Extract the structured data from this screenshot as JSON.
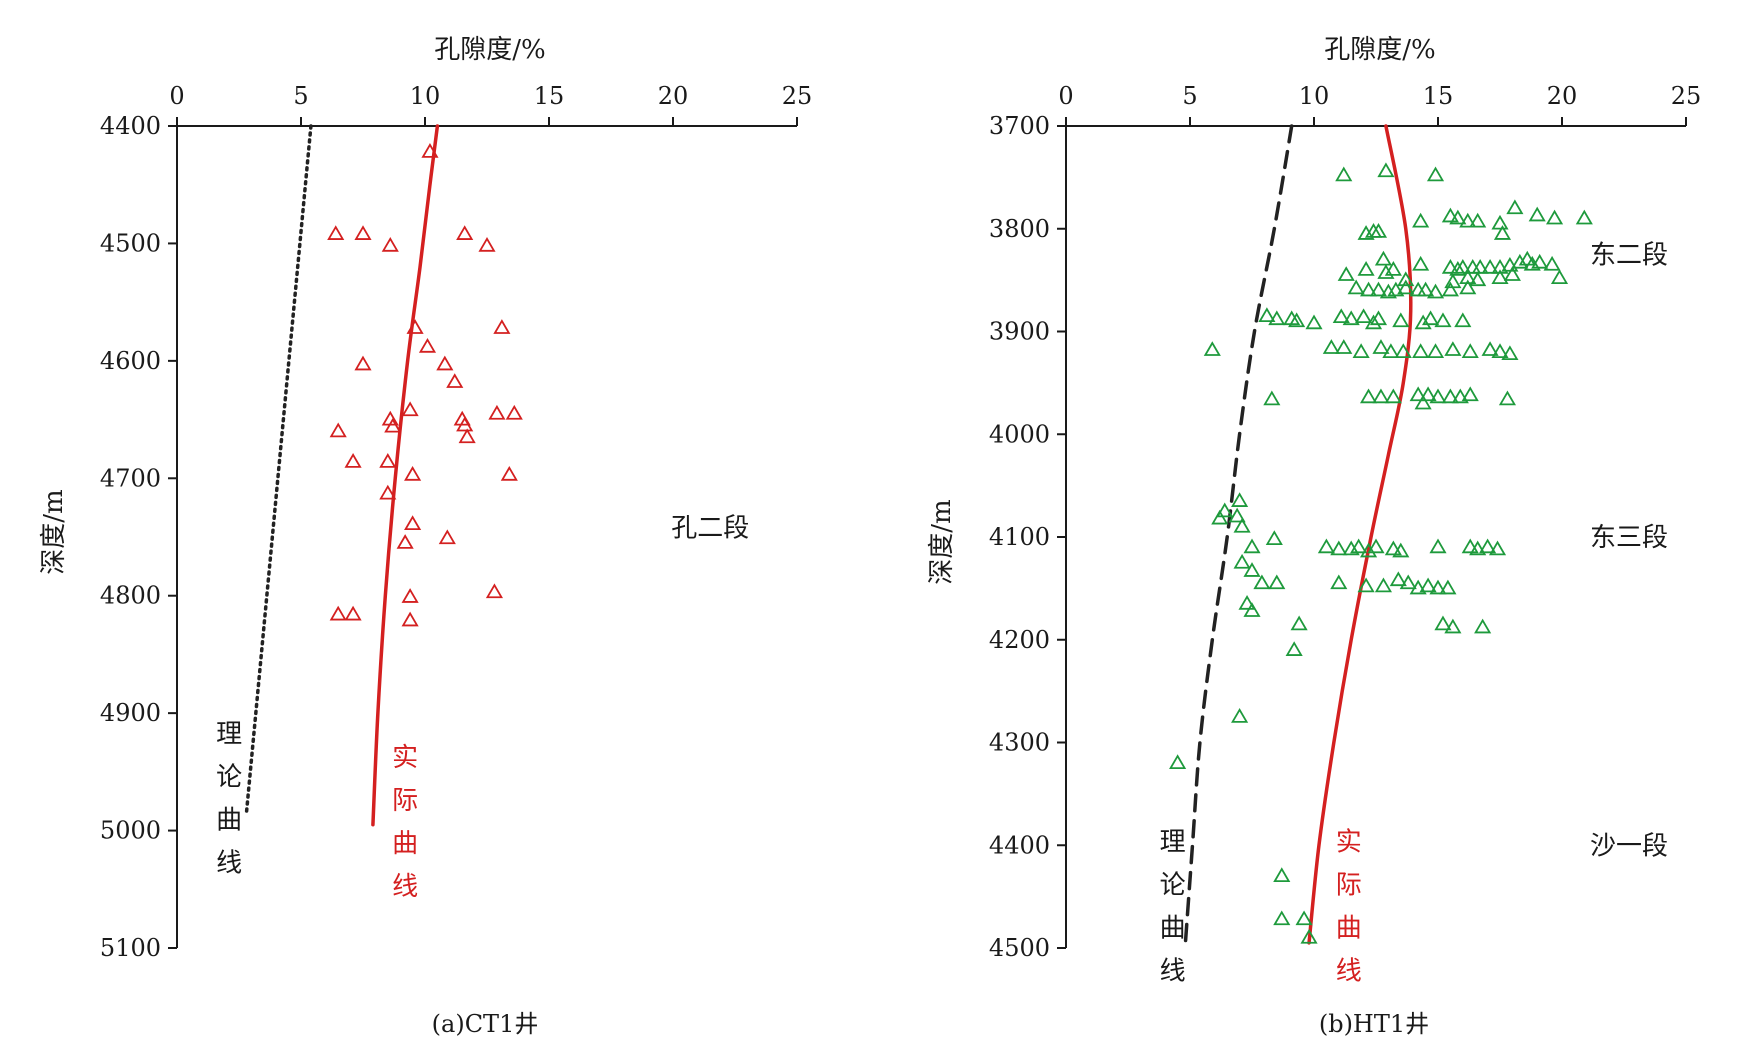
{
  "colors": {
    "actual_curve": "#d42020",
    "red_markers": "#d42020",
    "green_markers": "#1e9a3c",
    "theory_a": "#222222",
    "theory_b": "#222222",
    "axis": "#1a1a1a"
  },
  "chart_data": [
    {
      "type": "scatter",
      "caption": "(a)CT1井",
      "xlabel": "孔隙度/%",
      "ylabel": "深度/m",
      "x_axis_position": "top",
      "y_inverted": true,
      "xlim": [
        0,
        25
      ],
      "ylim": [
        4400,
        5100
      ],
      "xticks": [
        0,
        5,
        10,
        15,
        20,
        25
      ],
      "yticks": [
        4400,
        4500,
        4600,
        4700,
        4800,
        4900,
        5000,
        5100
      ],
      "grid": false,
      "marker": "triangle-open",
      "zone_labels": [
        {
          "text": "孔二段",
          "x": 21.5,
          "y": 4742
        }
      ],
      "curve_labels": [
        {
          "text": [
            "理",
            "论",
            "曲",
            "线"
          ],
          "x": 2.1,
          "y": 4925,
          "role": "theory"
        },
        {
          "text": [
            "实",
            "际",
            "曲",
            "线"
          ],
          "x": 9.2,
          "y": 4945,
          "role": "actual"
        }
      ],
      "theory_curve": {
        "style": "dotted",
        "points": [
          [
            5.4,
            4400
          ],
          [
            2.8,
            4985
          ]
        ]
      },
      "actual_curve": {
        "style": "solid",
        "points": [
          [
            10.5,
            4400
          ],
          [
            10.2,
            4450
          ],
          [
            9.8,
            4520
          ],
          [
            9.3,
            4600
          ],
          [
            8.8,
            4700
          ],
          [
            8.4,
            4800
          ],
          [
            8.1,
            4900
          ],
          [
            7.9,
            4995
          ]
        ]
      },
      "points": [
        [
          10.2,
          4422
        ],
        [
          6.4,
          4492
        ],
        [
          7.5,
          4492
        ],
        [
          8.6,
          4502
        ],
        [
          11.6,
          4492
        ],
        [
          12.5,
          4502
        ],
        [
          9.6,
          4572
        ],
        [
          13.1,
          4572
        ],
        [
          10.1,
          4588
        ],
        [
          10.8,
          4603
        ],
        [
          7.5,
          4603
        ],
        [
          11.2,
          4618
        ],
        [
          9.4,
          4642
        ],
        [
          12.9,
          4645
        ],
        [
          13.6,
          4645
        ],
        [
          8.6,
          4650
        ],
        [
          8.7,
          4656
        ],
        [
          11.5,
          4650
        ],
        [
          11.6,
          4655
        ],
        [
          11.7,
          4665
        ],
        [
          6.5,
          4660
        ],
        [
          7.1,
          4686
        ],
        [
          8.5,
          4686
        ],
        [
          9.5,
          4697
        ],
        [
          13.4,
          4697
        ],
        [
          8.5,
          4713
        ],
        [
          9.5,
          4739
        ],
        [
          10.9,
          4751
        ],
        [
          9.2,
          4755
        ],
        [
          9.4,
          4801
        ],
        [
          12.8,
          4797
        ],
        [
          6.5,
          4816
        ],
        [
          7.1,
          4816
        ],
        [
          9.4,
          4821
        ]
      ]
    },
    {
      "type": "scatter",
      "caption": "(b)HT1井",
      "xlabel": "孔隙度/%",
      "ylabel": "深度/m",
      "x_axis_position": "top",
      "y_inverted": true,
      "xlim": [
        0,
        25
      ],
      "ylim": [
        3700,
        4500
      ],
      "xticks": [
        0,
        5,
        10,
        15,
        20,
        25
      ],
      "yticks": [
        3700,
        3800,
        3900,
        4000,
        4100,
        4200,
        4300,
        4400,
        4500
      ],
      "grid": false,
      "marker": "triangle-open",
      "zone_labels": [
        {
          "text": "东二段",
          "x": 22.7,
          "y": 3825
        },
        {
          "text": "东三段",
          "x": 22.7,
          "y": 4100
        },
        {
          "text": "沙一段",
          "x": 22.7,
          "y": 4400
        }
      ],
      "curve_labels": [
        {
          "text": [
            "理",
            "论",
            "曲",
            "线"
          ],
          "x": 4.3,
          "y": 4405,
          "role": "theory"
        },
        {
          "text": [
            "实",
            "际",
            "曲",
            "线"
          ],
          "x": 11.4,
          "y": 4405,
          "role": "actual"
        }
      ],
      "theory_curve": {
        "style": "dashed",
        "points": [
          [
            9.1,
            3700
          ],
          [
            8.4,
            3800
          ],
          [
            7.6,
            3900
          ],
          [
            7.0,
            4000
          ],
          [
            6.5,
            4100
          ],
          [
            5.9,
            4200
          ],
          [
            5.4,
            4300
          ],
          [
            5.1,
            4400
          ],
          [
            4.8,
            4500
          ]
        ]
      },
      "actual_curve": {
        "style": "solid",
        "points": [
          [
            12.9,
            3700
          ],
          [
            13.7,
            3800
          ],
          [
            13.9,
            3880
          ],
          [
            13.6,
            3950
          ],
          [
            13.0,
            4020
          ],
          [
            12.3,
            4100
          ],
          [
            11.5,
            4200
          ],
          [
            10.8,
            4300
          ],
          [
            10.2,
            4400
          ],
          [
            9.8,
            4495
          ]
        ]
      },
      "points": [
        [
          11.2,
          3748
        ],
        [
          12.9,
          3744
        ],
        [
          14.9,
          3748
        ],
        [
          14.3,
          3793
        ],
        [
          15.5,
          3788
        ],
        [
          15.8,
          3790
        ],
        [
          16.2,
          3793
        ],
        [
          16.6,
          3793
        ],
        [
          17.5,
          3795
        ],
        [
          17.6,
          3805
        ],
        [
          18.1,
          3780
        ],
        [
          19.0,
          3787
        ],
        [
          19.7,
          3790
        ],
        [
          20.9,
          3790
        ],
        [
          12.1,
          3805
        ],
        [
          12.4,
          3803
        ],
        [
          12.6,
          3803
        ],
        [
          12.8,
          3830
        ],
        [
          14.3,
          3835
        ],
        [
          15.5,
          3838
        ],
        [
          15.8,
          3840
        ],
        [
          16.0,
          3838
        ],
        [
          16.4,
          3838
        ],
        [
          16.7,
          3838
        ],
        [
          17.1,
          3838
        ],
        [
          17.5,
          3838
        ],
        [
          17.9,
          3836
        ],
        [
          18.3,
          3833
        ],
        [
          18.6,
          3830
        ],
        [
          18.8,
          3835
        ],
        [
          19.1,
          3833
        ],
        [
          19.6,
          3835
        ],
        [
          19.9,
          3848
        ],
        [
          11.3,
          3845
        ],
        [
          12.1,
          3840
        ],
        [
          12.9,
          3843
        ],
        [
          13.2,
          3840
        ],
        [
          13.7,
          3850
        ],
        [
          15.6,
          3852
        ],
        [
          16.2,
          3848
        ],
        [
          16.6,
          3850
        ],
        [
          17.5,
          3848
        ],
        [
          18.0,
          3845
        ],
        [
          11.7,
          3858
        ],
        [
          12.2,
          3860
        ],
        [
          12.6,
          3860
        ],
        [
          13.0,
          3862
        ],
        [
          13.3,
          3860
        ],
        [
          13.7,
          3858
        ],
        [
          14.2,
          3860
        ],
        [
          14.5,
          3860
        ],
        [
          14.9,
          3862
        ],
        [
          15.5,
          3860
        ],
        [
          16.2,
          3858
        ],
        [
          8.1,
          3885
        ],
        [
          8.5,
          3888
        ],
        [
          9.1,
          3888
        ],
        [
          9.3,
          3890
        ],
        [
          10.0,
          3892
        ],
        [
          11.1,
          3886
        ],
        [
          11.5,
          3888
        ],
        [
          12.0,
          3886
        ],
        [
          12.4,
          3892
        ],
        [
          12.6,
          3888
        ],
        [
          13.5,
          3890
        ],
        [
          14.4,
          3892
        ],
        [
          14.7,
          3888
        ],
        [
          15.2,
          3890
        ],
        [
          16.0,
          3890
        ],
        [
          5.9,
          3918
        ],
        [
          10.7,
          3916
        ],
        [
          11.2,
          3916
        ],
        [
          11.9,
          3920
        ],
        [
          12.7,
          3916
        ],
        [
          13.1,
          3920
        ],
        [
          13.6,
          3920
        ],
        [
          14.3,
          3920
        ],
        [
          14.9,
          3920
        ],
        [
          15.6,
          3918
        ],
        [
          16.3,
          3920
        ],
        [
          17.1,
          3918
        ],
        [
          17.5,
          3920
        ],
        [
          17.9,
          3922
        ],
        [
          8.3,
          3966
        ],
        [
          12.2,
          3964
        ],
        [
          12.7,
          3964
        ],
        [
          13.2,
          3964
        ],
        [
          14.2,
          3962
        ],
        [
          14.6,
          3962
        ],
        [
          15.0,
          3964
        ],
        [
          15.5,
          3964
        ],
        [
          15.9,
          3964
        ],
        [
          16.3,
          3962
        ],
        [
          17.8,
          3966
        ],
        [
          14.4,
          3970
        ],
        [
          7.0,
          4065
        ],
        [
          6.4,
          4075
        ],
        [
          6.2,
          4082
        ],
        [
          6.9,
          4080
        ],
        [
          7.1,
          4090
        ],
        [
          8.4,
          4102
        ],
        [
          7.5,
          4110
        ],
        [
          10.5,
          4110
        ],
        [
          11.0,
          4112
        ],
        [
          11.5,
          4112
        ],
        [
          11.8,
          4110
        ],
        [
          12.2,
          4114
        ],
        [
          12.5,
          4110
        ],
        [
          13.2,
          4112
        ],
        [
          13.5,
          4114
        ],
        [
          15.0,
          4110
        ],
        [
          16.3,
          4110
        ],
        [
          16.6,
          4112
        ],
        [
          17.0,
          4110
        ],
        [
          17.4,
          4112
        ],
        [
          7.1,
          4125
        ],
        [
          7.5,
          4133
        ],
        [
          7.9,
          4145
        ],
        [
          8.5,
          4145
        ],
        [
          11.0,
          4145
        ],
        [
          12.1,
          4148
        ],
        [
          12.8,
          4148
        ],
        [
          13.4,
          4142
        ],
        [
          13.8,
          4145
        ],
        [
          14.2,
          4150
        ],
        [
          14.6,
          4148
        ],
        [
          15.0,
          4150
        ],
        [
          15.4,
          4150
        ],
        [
          7.3,
          4165
        ],
        [
          7.5,
          4172
        ],
        [
          9.4,
          4185
        ],
        [
          9.2,
          4210
        ],
        [
          15.2,
          4185
        ],
        [
          15.6,
          4188
        ],
        [
          16.8,
          4188
        ],
        [
          7.0,
          4275
        ],
        [
          4.5,
          4320
        ],
        [
          8.7,
          4430
        ],
        [
          8.7,
          4472
        ],
        [
          9.6,
          4472
        ],
        [
          9.8,
          4490
        ]
      ]
    }
  ]
}
